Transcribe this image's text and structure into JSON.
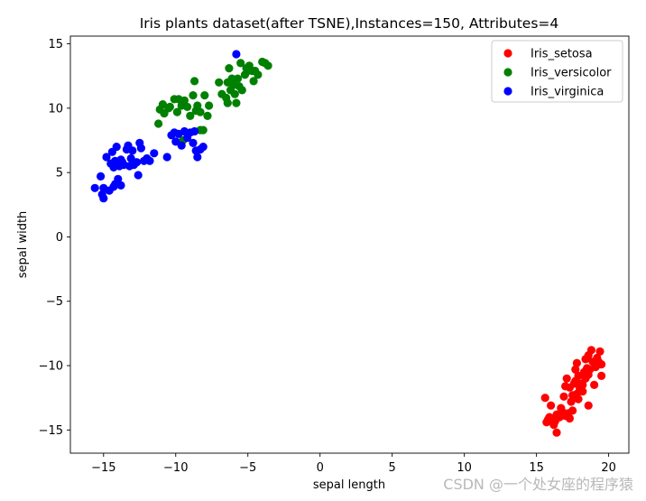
{
  "chart_data": {
    "type": "scatter",
    "title": "Iris plants dataset(after TSNE),Instances=150, Attributes=4",
    "xlabel": "sepal length",
    "ylabel": "sepal width",
    "xlim": [
      -17.3,
      21.4
    ],
    "ylim": [
      -16.8,
      15.6
    ],
    "xticks": [
      -15,
      -10,
      -5,
      0,
      5,
      10,
      15,
      20
    ],
    "yticks": [
      -15,
      -10,
      -5,
      0,
      5,
      10,
      15
    ],
    "grid": false,
    "legend_position": "top-right",
    "series": [
      {
        "name": "Iris_setosa",
        "color": "#ff0000",
        "points": [
          [
            15.6,
            -12.5
          ],
          [
            16.0,
            -13.1
          ],
          [
            15.7,
            -14.4
          ],
          [
            15.9,
            -14.0
          ],
          [
            16.2,
            -14.6
          ],
          [
            16.4,
            -13.8
          ],
          [
            16.3,
            -14.3
          ],
          [
            16.4,
            -15.2
          ],
          [
            16.6,
            -14.0
          ],
          [
            16.8,
            -13.6
          ],
          [
            16.9,
            -12.4
          ],
          [
            17.0,
            -13.9
          ],
          [
            17.1,
            -11.0
          ],
          [
            17.2,
            -13.7
          ],
          [
            17.3,
            -14.1
          ],
          [
            17.4,
            -12.8
          ],
          [
            17.3,
            -11.7
          ],
          [
            17.5,
            -12.3
          ],
          [
            17.6,
            -11.4
          ],
          [
            17.5,
            -13.5
          ],
          [
            17.7,
            -10.3
          ],
          [
            17.8,
            -9.8
          ],
          [
            17.7,
            -11.2
          ],
          [
            17.9,
            -10.8
          ],
          [
            18.0,
            -11.8
          ],
          [
            17.9,
            -12.6
          ],
          [
            18.1,
            -11.4
          ],
          [
            18.2,
            -12.0
          ],
          [
            18.3,
            -10.5
          ],
          [
            18.4,
            -9.5
          ],
          [
            18.5,
            -10.2
          ],
          [
            18.4,
            -11.0
          ],
          [
            18.6,
            -10.7
          ],
          [
            18.6,
            -9.2
          ],
          [
            18.8,
            -8.8
          ],
          [
            18.7,
            -10.3
          ],
          [
            18.9,
            -9.7
          ],
          [
            19.0,
            -11.5
          ],
          [
            19.2,
            -9.4
          ],
          [
            19.3,
            -9.7
          ],
          [
            19.4,
            -8.9
          ],
          [
            19.5,
            -9.9
          ],
          [
            19.5,
            -10.8
          ],
          [
            18.6,
            -13.1
          ],
          [
            17.8,
            -12.2
          ],
          [
            16.7,
            -13.3
          ],
          [
            15.8,
            -14.2
          ],
          [
            18.2,
            -11.5
          ],
          [
            19.1,
            -10.1
          ],
          [
            17.0,
            -11.6
          ]
        ]
      },
      {
        "name": "Iris_versicolor",
        "color": "#008000",
        "points": [
          [
            -11.2,
            8.8
          ],
          [
            -11.1,
            9.9
          ],
          [
            -10.9,
            10.3
          ],
          [
            -10.8,
            9.6
          ],
          [
            -10.5,
            10.0
          ],
          [
            -10.4,
            10.1
          ],
          [
            -10.1,
            10.7
          ],
          [
            -9.9,
            9.7
          ],
          [
            -9.8,
            10.7
          ],
          [
            -9.6,
            10.2
          ],
          [
            -9.4,
            10.6
          ],
          [
            -9.2,
            10.1
          ],
          [
            -9.0,
            9.4
          ],
          [
            -8.8,
            11.0
          ],
          [
            -8.7,
            12.1
          ],
          [
            -8.6,
            9.8
          ],
          [
            -8.5,
            10.2
          ],
          [
            -8.3,
            9.7
          ],
          [
            -8.1,
            8.3
          ],
          [
            -8.0,
            11.0
          ],
          [
            -7.8,
            9.4
          ],
          [
            -7.7,
            10.2
          ],
          [
            -7.0,
            12.0
          ],
          [
            -6.8,
            11.1
          ],
          [
            -6.5,
            10.8
          ],
          [
            -6.4,
            10.4
          ],
          [
            -6.3,
            13.1
          ],
          [
            -6.2,
            11.4
          ],
          [
            -6.1,
            12.3
          ],
          [
            -6.0,
            11.8
          ],
          [
            -5.9,
            11.1
          ],
          [
            -5.8,
            10.4
          ],
          [
            -5.7,
            12.3
          ],
          [
            -5.6,
            11.7
          ],
          [
            -5.5,
            13.5
          ],
          [
            -5.4,
            11.4
          ],
          [
            -5.2,
            12.6
          ],
          [
            -5.0,
            12.9
          ],
          [
            -4.9,
            13.3
          ],
          [
            -4.7,
            12.9
          ],
          [
            -4.6,
            12.1
          ],
          [
            -4.5,
            12.9
          ],
          [
            -4.3,
            12.6
          ],
          [
            -4.0,
            13.6
          ],
          [
            -3.8,
            13.5
          ],
          [
            -3.6,
            13.3
          ],
          [
            -6.4,
            12.0
          ],
          [
            -5.1,
            13.1
          ],
          [
            -8.3,
            8.3
          ],
          [
            -9.5,
            7.5
          ]
        ]
      },
      {
        "name": "Iris_virginica",
        "color": "#0000ff",
        "points": [
          [
            -15.6,
            3.8
          ],
          [
            -15.2,
            4.7
          ],
          [
            -15.1,
            3.3
          ],
          [
            -15.0,
            3.0
          ],
          [
            -15.0,
            3.8
          ],
          [
            -14.8,
            6.2
          ],
          [
            -14.6,
            3.6
          ],
          [
            -14.5,
            5.7
          ],
          [
            -14.4,
            6.6
          ],
          [
            -14.3,
            3.9
          ],
          [
            -14.3,
            5.4
          ],
          [
            -14.2,
            4.1
          ],
          [
            -14.2,
            5.9
          ],
          [
            -14.1,
            7.0
          ],
          [
            -14.0,
            4.5
          ],
          [
            -13.9,
            5.5
          ],
          [
            -13.8,
            6.0
          ],
          [
            -13.8,
            4.0
          ],
          [
            -13.7,
            5.8
          ],
          [
            -13.6,
            5.6
          ],
          [
            -13.4,
            6.8
          ],
          [
            -13.3,
            7.1
          ],
          [
            -13.2,
            5.5
          ],
          [
            -13.1,
            6.1
          ],
          [
            -13.0,
            6.7
          ],
          [
            -12.9,
            5.6
          ],
          [
            -12.7,
            5.8
          ],
          [
            -12.6,
            4.8
          ],
          [
            -12.5,
            7.3
          ],
          [
            -12.4,
            6.9
          ],
          [
            -12.2,
            5.9
          ],
          [
            -12.0,
            6.1
          ],
          [
            -11.8,
            5.9
          ],
          [
            -11.5,
            6.5
          ],
          [
            -10.6,
            6.2
          ],
          [
            -10.3,
            7.9
          ],
          [
            -10.1,
            8.1
          ],
          [
            -10.0,
            7.4
          ],
          [
            -9.8,
            8.0
          ],
          [
            -9.6,
            7.1
          ],
          [
            -9.4,
            8.2
          ],
          [
            -9.2,
            7.7
          ],
          [
            -9.0,
            8.1
          ],
          [
            -8.8,
            7.3
          ],
          [
            -8.7,
            8.2
          ],
          [
            -8.6,
            6.7
          ],
          [
            -8.5,
            6.2
          ],
          [
            -8.3,
            6.8
          ],
          [
            -8.1,
            7.0
          ],
          [
            -5.8,
            14.2
          ]
        ]
      }
    ]
  },
  "watermark": "CSDN @一个处女座的程序猿"
}
